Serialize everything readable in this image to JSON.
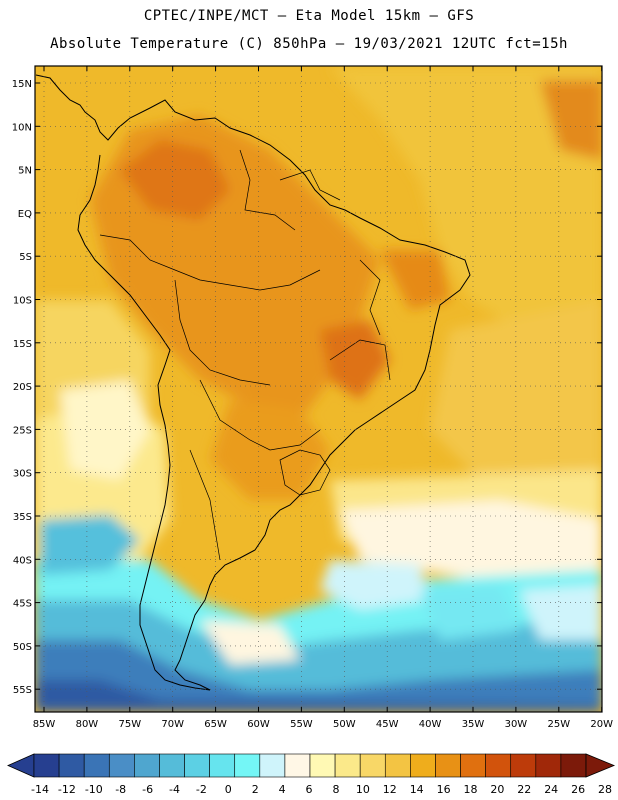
{
  "header": {
    "line1": "CPTEC/INPE/MCT –  Eta Model 15km – GFS",
    "line2": "Absolute Temperature (C) 850hPa – 19/03/2021 12UTC fct=15h"
  },
  "map": {
    "lat_labels": [
      "15N",
      "10N",
      "5N",
      "EQ",
      "5S",
      "10S",
      "15S",
      "20S",
      "25S",
      "30S",
      "35S",
      "40S",
      "45S",
      "50S",
      "55S"
    ],
    "lon_labels": [
      "85W",
      "80W",
      "75W",
      "70W",
      "65W",
      "60W",
      "55W",
      "50W",
      "45W",
      "40W",
      "35W",
      "30W",
      "25W",
      "20W"
    ]
  },
  "colorbar": {
    "labels": [
      "-14",
      "-12",
      "-10",
      "-8",
      "-6",
      "-4",
      "-2",
      "0",
      "2",
      "4",
      "6",
      "8",
      "10",
      "12",
      "14",
      "16",
      "18",
      "20",
      "22",
      "24",
      "26",
      "28"
    ],
    "colors": [
      "#263f90",
      "#2f5aa3",
      "#3a74b6",
      "#4a8ec6",
      "#4fa6cf",
      "#55bcd9",
      "#5cd0e4",
      "#66e4ee",
      "#74f6f6",
      "#cff4fb",
      "#fff7e6",
      "#fff9b4",
      "#fbe98a",
      "#f8d767",
      "#f3c443",
      "#efad1c",
      "#e89115",
      "#e0700f",
      "#d2530c",
      "#bd3b0a",
      "#a02809",
      "#7c1a0a"
    ]
  }
}
